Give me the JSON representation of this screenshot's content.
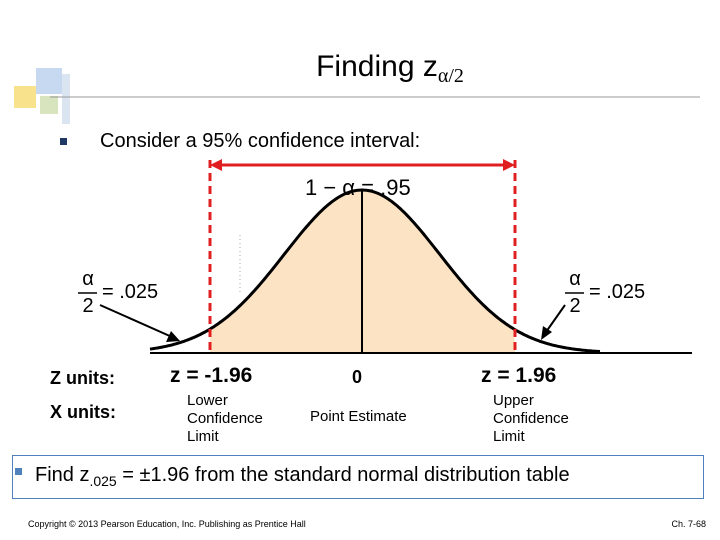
{
  "header": {
    "title": "Finding z",
    "title_subscript": "α/2"
  },
  "bullet": "Consider a 95% confidence interval:",
  "diagram": {
    "center_formula": "1 − α = .95",
    "left_tail": {
      "numerator": "α",
      "denominator": "2",
      "rest": "= .025"
    },
    "right_tail": {
      "numerator": "α",
      "denominator": "2",
      "rest": "= .025"
    },
    "z_row": {
      "label": "Z units:",
      "lower": "z = -1.96",
      "center": "0",
      "upper": "z = 1.96"
    },
    "x_row": {
      "label": "X units:",
      "lower": "Lower Confidence Limit",
      "center": "Point Estimate",
      "upper": "Upper Confidence Limit"
    }
  },
  "footer_box": {
    "start": "Find z",
    "subscript": ".025",
    "end": " = ±1.96 from the standard normal distribution table"
  },
  "footer": {
    "copyright": "Copyright © 2013 Pearson Education, Inc. Publishing as Prentice Hall",
    "page": "Ch. 7-68"
  }
}
